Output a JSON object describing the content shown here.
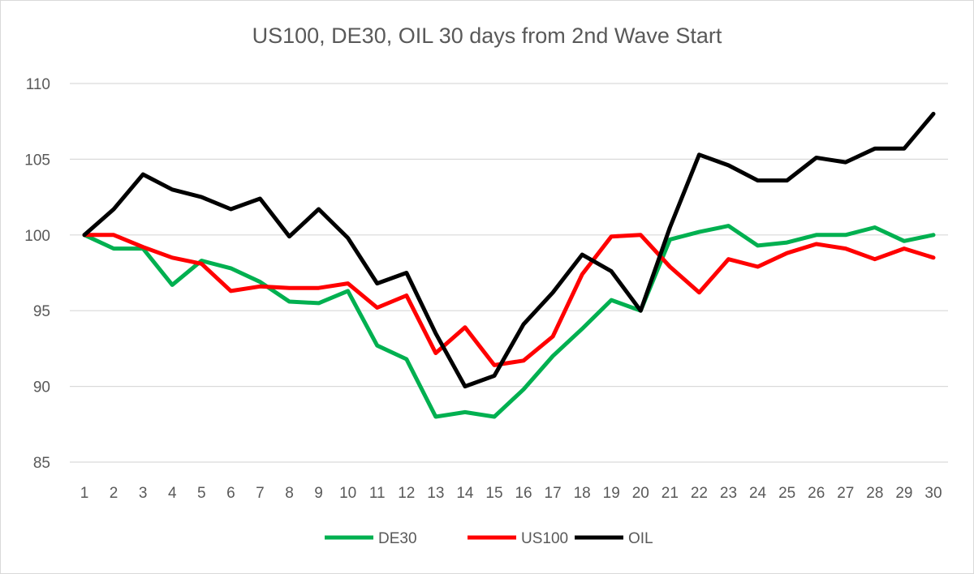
{
  "chart_data": {
    "type": "line",
    "title": "US100, DE30, OIL 30 days from 2nd Wave Start",
    "xlabel": "",
    "ylabel": "",
    "x": [
      1,
      2,
      3,
      4,
      5,
      6,
      7,
      8,
      9,
      10,
      11,
      12,
      13,
      14,
      15,
      16,
      17,
      18,
      19,
      20,
      21,
      22,
      23,
      24,
      25,
      26,
      27,
      28,
      29,
      30
    ],
    "ylim": [
      85,
      110
    ],
    "yticks": [
      85,
      90,
      95,
      100,
      105,
      110
    ],
    "grid": true,
    "legend_position": "bottom",
    "series": [
      {
        "name": "DE30",
        "color": "#00b050",
        "values": [
          100,
          99.1,
          99.1,
          96.7,
          98.3,
          97.8,
          96.9,
          95.6,
          95.5,
          96.3,
          92.7,
          91.8,
          88.0,
          88.3,
          88.0,
          89.8,
          92.0,
          93.8,
          95.7,
          95.0,
          99.7,
          100.2,
          100.6,
          99.3,
          99.5,
          100.0,
          100.0,
          100.5,
          99.6,
          100.0
        ]
      },
      {
        "name": "US100",
        "color": "#ff0000",
        "values": [
          100,
          100.0,
          99.2,
          98.5,
          98.1,
          96.3,
          96.6,
          96.5,
          96.5,
          96.8,
          95.2,
          96.0,
          92.2,
          93.9,
          91.4,
          91.7,
          93.3,
          97.4,
          99.9,
          100.0,
          97.9,
          96.2,
          98.4,
          97.9,
          98.8,
          99.4,
          99.1,
          98.4,
          99.1,
          98.5
        ]
      },
      {
        "name": "OIL",
        "color": "#000000",
        "values": [
          100,
          101.7,
          104.0,
          103.0,
          102.5,
          101.7,
          102.4,
          99.9,
          101.7,
          99.8,
          96.8,
          97.5,
          93.5,
          90.0,
          90.7,
          94.1,
          96.2,
          98.7,
          97.6,
          95.0,
          100.5,
          105.3,
          104.6,
          103.6,
          103.6,
          105.1,
          104.8,
          105.7,
          105.7,
          108.0
        ]
      }
    ]
  }
}
